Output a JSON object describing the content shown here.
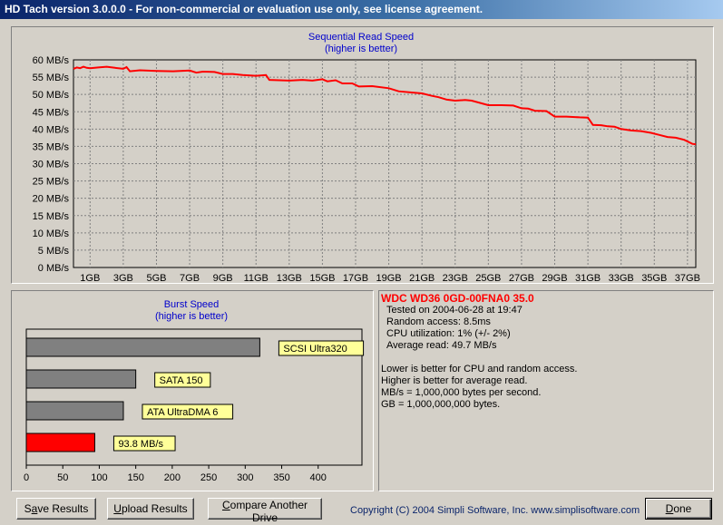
{
  "window": {
    "title": "HD Tach version 3.0.0.0  - For non-commercial or evaluation use only, see license agreement."
  },
  "sequential": {
    "title": "Sequential Read Speed",
    "subtitle": "(higher is better)",
    "color": "#ff0000"
  },
  "chart_data": [
    {
      "type": "line",
      "title": "Sequential Read Speed",
      "subtitle": "(higher is better)",
      "y_unit": "MB/s",
      "x_unit": "GB",
      "ylim": [
        0,
        60
      ],
      "xlim": [
        0,
        37.5
      ],
      "y_ticks": [
        0,
        5,
        10,
        15,
        20,
        25,
        30,
        35,
        40,
        45,
        50,
        55,
        60
      ],
      "y_tick_labels": [
        "0 MB/s",
        "5 MB/s",
        "10 MB/s",
        "15 MB/s",
        "20 MB/s",
        "25 MB/s",
        "30 MB/s",
        "35 MB/s",
        "40 MB/s",
        "45 MB/s",
        "50 MB/s",
        "55 MB/s",
        "60 MB/s"
      ],
      "x_ticks": [
        1,
        3,
        5,
        7,
        9,
        11,
        13,
        15,
        17,
        19,
        21,
        23,
        25,
        27,
        29,
        31,
        33,
        35,
        37
      ],
      "x_tick_labels": [
        "1GB",
        "3GB",
        "5GB",
        "7GB",
        "9GB",
        "11GB",
        "13GB",
        "15GB",
        "17GB",
        "19GB",
        "21GB",
        "23GB",
        "25GB",
        "27GB",
        "29GB",
        "31GB",
        "33GB",
        "35GB",
        "37GB"
      ],
      "grid": true,
      "series": [
        {
          "color": "#ff0000",
          "x": [
            0,
            0.2,
            0.4,
            0.6,
            0.8,
            1.0,
            1.5,
            2.0,
            2.5,
            3.0,
            3.2,
            3.4,
            4.0,
            5.0,
            6.0,
            7.0,
            7.4,
            7.8,
            8.5,
            9.0,
            9.6,
            10.2,
            11.0,
            11.6,
            11.8,
            13.0,
            13.8,
            14.4,
            15.0,
            15.3,
            15.8,
            16.2,
            16.8,
            17.2,
            18.0,
            19.0,
            19.6,
            20.3,
            21.0,
            21.6,
            22.0,
            22.5,
            23.0,
            23.6,
            24.0,
            25.0,
            25.8,
            26.5,
            27.0,
            27.4,
            27.8,
            28.5,
            29.0,
            29.7,
            30.5,
            31.0,
            31.3,
            31.8,
            32.2,
            32.6,
            33.0,
            33.6,
            34.2,
            34.8,
            35.3,
            35.8,
            36.3,
            36.8,
            37.3,
            37.5
          ],
          "y": [
            57.4,
            57.8,
            57.6,
            58.0,
            57.7,
            57.6,
            57.8,
            58.0,
            57.7,
            57.4,
            57.9,
            56.7,
            57.0,
            56.8,
            56.7,
            56.9,
            56.3,
            56.6,
            56.5,
            55.9,
            55.9,
            55.6,
            55.4,
            55.6,
            54.2,
            54.0,
            54.2,
            54.0,
            54.4,
            53.8,
            54.1,
            53.2,
            53.2,
            52.3,
            52.4,
            51.8,
            50.9,
            50.6,
            50.3,
            49.6,
            49.2,
            48.5,
            48.2,
            48.4,
            48.2,
            46.9,
            46.9,
            46.8,
            46.0,
            45.9,
            45.3,
            45.2,
            43.6,
            43.6,
            43.4,
            43.3,
            41.2,
            41.1,
            40.8,
            40.7,
            40.0,
            39.6,
            39.4,
            38.9,
            38.3,
            37.7,
            37.5,
            36.9,
            35.7,
            35.6
          ]
        }
      ]
    },
    {
      "type": "bar",
      "orientation": "horizontal",
      "title": "Burst Speed",
      "subtitle": "(higher is better)",
      "xlim": [
        0,
        460
      ],
      "x_ticks": [
        0,
        50,
        100,
        150,
        200,
        250,
        300,
        350,
        400
      ],
      "categories": [
        "SCSI Ultra320",
        "SATA 150",
        "ATA UltraDMA 6",
        "93.8 MB/s"
      ],
      "values": [
        320,
        150,
        133,
        93.8
      ],
      "colors": [
        "#808080",
        "#808080",
        "#808080",
        "#ff0000"
      ],
      "grid": false
    }
  ],
  "burst": {
    "title": "Burst Speed",
    "subtitle": "(higher is better)"
  },
  "info": {
    "drive_name": "WDC WD36 0GD-00FNA0 35.0",
    "tested_on": "Tested on 2004-06-28 at 19:47",
    "random_access": "Random access: 8.5ms",
    "cpu_utilization": "CPU utilization: 1% (+/- 2%)",
    "average_read": "Average read: 49.7 MB/s",
    "note1": "Lower is better for CPU and random access.",
    "note2": "Higher is better for average read.",
    "note3": "MB/s = 1,000,000 bytes per second.",
    "note4": "GB = 1,000,000,000 bytes.",
    "title_color": "#ff0000"
  },
  "buttons": {
    "save_pre": "S",
    "save_ul": "a",
    "save_post": "ve Results",
    "upload_pre": "",
    "upload_ul": "U",
    "upload_post": "pload Results",
    "compare_pre": "",
    "compare_ul": "C",
    "compare_post": "ompare Another Drive",
    "done_pre": "",
    "done_ul": "D",
    "done_post": "one"
  },
  "footer": {
    "copyright": "Copyright (C) 2004 Simpli Software, Inc. www.simplisoftware.com"
  }
}
